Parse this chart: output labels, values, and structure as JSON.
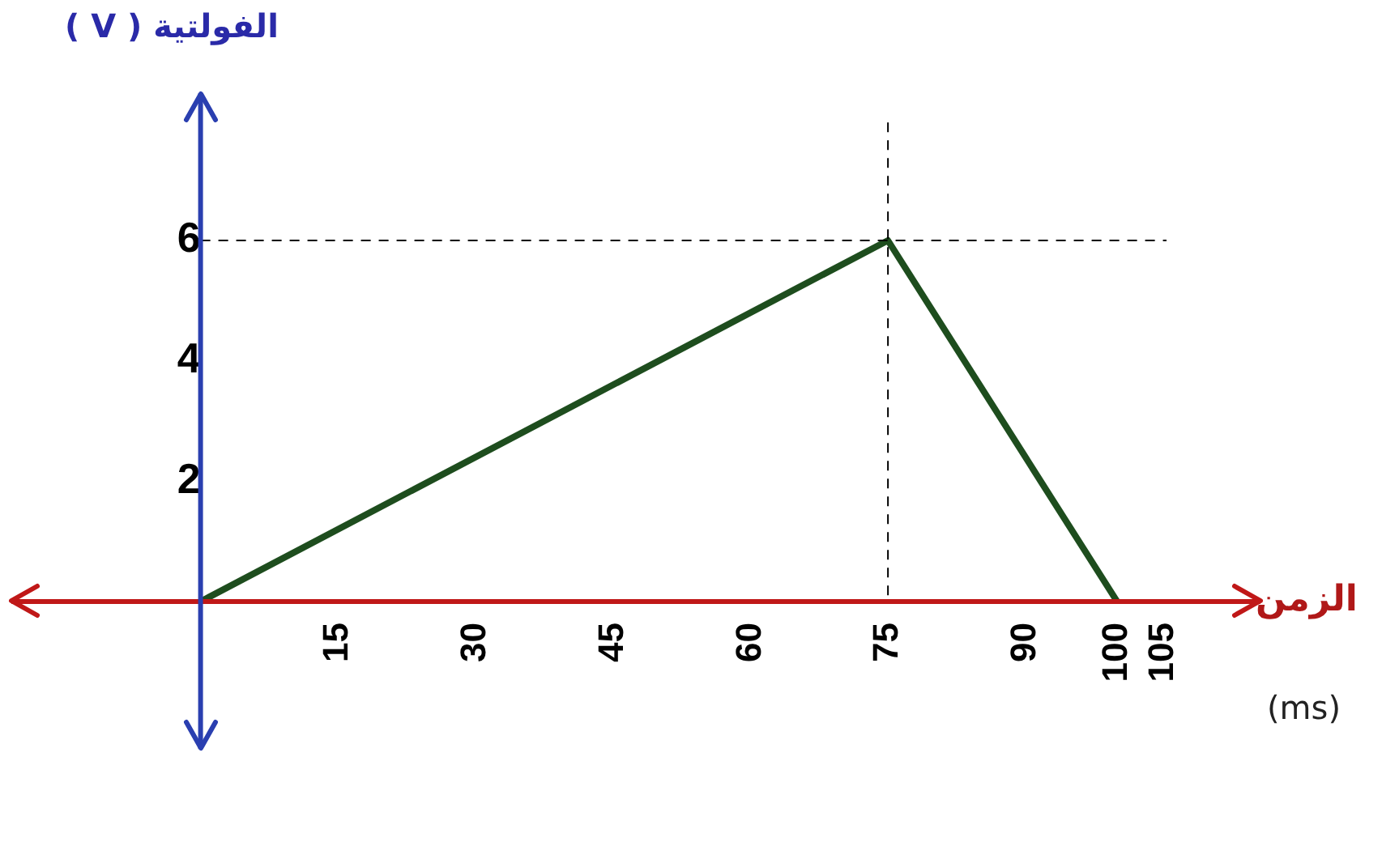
{
  "chart_data": {
    "type": "line",
    "ylabel": "الفولتية ( V )",
    "xlabel": "الزمن",
    "annotations": [
      "(ms)"
    ],
    "x": [
      0,
      75,
      100
    ],
    "series": [
      {
        "color": "#1e4d1e",
        "values": [
          0,
          6,
          0
        ]
      }
    ],
    "xlim": [
      -21,
      116
    ],
    "ylim": [
      -2.5,
      8.5
    ],
    "xticks": [
      15,
      30,
      45,
      60,
      75,
      90,
      100,
      105
    ],
    "yticks": [
      2,
      4,
      6
    ],
    "ref_lines": [
      {
        "axis": "y",
        "value": 6,
        "color": "#000000",
        "line_style": "dashed"
      },
      {
        "axis": "x",
        "value": 75,
        "color": "#000000",
        "line_style": "dashed"
      }
    ],
    "grid": false,
    "legend": false,
    "marker": "none",
    "line_style": "solid"
  }
}
